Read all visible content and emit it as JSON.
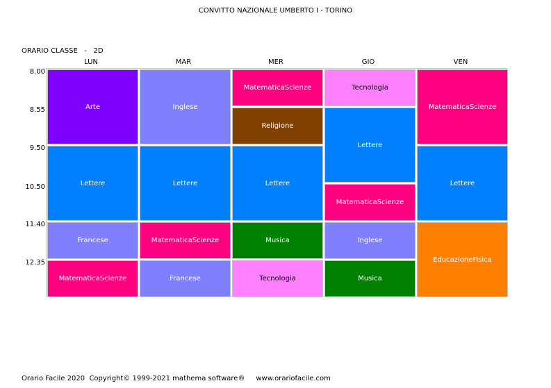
{
  "header": {
    "school": "CONVITTO NAZIONALE UMBERTO I - TORINO",
    "class_label": "ORARIO CLASSE   -   2D"
  },
  "days": [
    "LUN",
    "MAR",
    "MER",
    "GIO",
    "VEN"
  ],
  "times": [
    "8.00",
    "8.55",
    "9.50",
    "10.50",
    "11.40",
    "12.35"
  ],
  "colors": {
    "Arte": "#8000ff",
    "Inglese": "#8080ff",
    "Lettere": "#0080ff",
    "Francese": "#8080ff",
    "MatematicaScienze": "#ff0080",
    "Religione": "#804000",
    "Musica": "#008000",
    "Tecnologia": "#ff80ff",
    "EducazioneFisica": "#ff8000"
  },
  "schedule": [
    [
      {
        "subject": "Arte",
        "span": 2
      },
      {
        "subject": "Lettere",
        "span": 2
      },
      {
        "subject": "Francese",
        "span": 1
      },
      {
        "subject": "MatematicaScienze",
        "span": 1
      }
    ],
    [
      {
        "subject": "Inglese",
        "span": 2
      },
      {
        "subject": "Lettere",
        "span": 2
      },
      {
        "subject": "MatematicaScienze",
        "span": 1
      },
      {
        "subject": "Francese",
        "span": 1
      }
    ],
    [
      {
        "subject": "MatematicaScienze",
        "span": 1
      },
      {
        "subject": "Religione",
        "span": 1
      },
      {
        "subject": "Lettere",
        "span": 2
      },
      {
        "subject": "Musica",
        "span": 1
      },
      {
        "subject": "Tecnologia",
        "span": 1
      }
    ],
    [
      {
        "subject": "Tecnologia",
        "span": 1
      },
      {
        "subject": "Lettere",
        "span": 2
      },
      {
        "subject": "MatematicaScienze",
        "span": 1
      },
      {
        "subject": "Inglese",
        "span": 1
      },
      {
        "subject": "Musica",
        "span": 1
      }
    ],
    [
      {
        "subject": "MatematicaScienze",
        "span": 2
      },
      {
        "subject": "Lettere",
        "span": 2
      },
      {
        "subject": "EducazioneFisica",
        "span": 2
      }
    ]
  ],
  "footer": {
    "text": "Orario Facile 2020  Copyright© 1999-2021 mathema software®     www.orariofacile.com"
  }
}
